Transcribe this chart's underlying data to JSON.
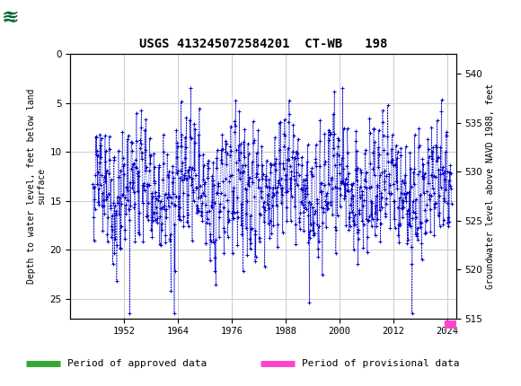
{
  "title": "USGS 413245072584201  CT-WB   198",
  "ylabel_left": "Depth to water level, feet below land\nsurface",
  "ylabel_right": "Groundwater level above NAVD 1988, feet",
  "ylim_left": [
    27,
    0
  ],
  "ylim_right": [
    515,
    542
  ],
  "xlim": [
    1940,
    2026
  ],
  "xticks": [
    1952,
    1964,
    1976,
    1988,
    2000,
    2012,
    2024
  ],
  "yticks_left": [
    0,
    5,
    10,
    15,
    20,
    25
  ],
  "yticks_right": [
    515,
    520,
    525,
    530,
    535,
    540
  ],
  "data_color": "#0000cc",
  "marker": "+",
  "markersize": 3,
  "linestyle": "--",
  "linewidth": 0.4,
  "header_color": "#006633",
  "green_bar_color": "#33aa33",
  "pink_bar_color": "#ff44cc",
  "legend_approved": "Period of approved data",
  "legend_provisional": "Period of provisional data",
  "background_color": "#ffffff",
  "grid_color": "#cccccc"
}
